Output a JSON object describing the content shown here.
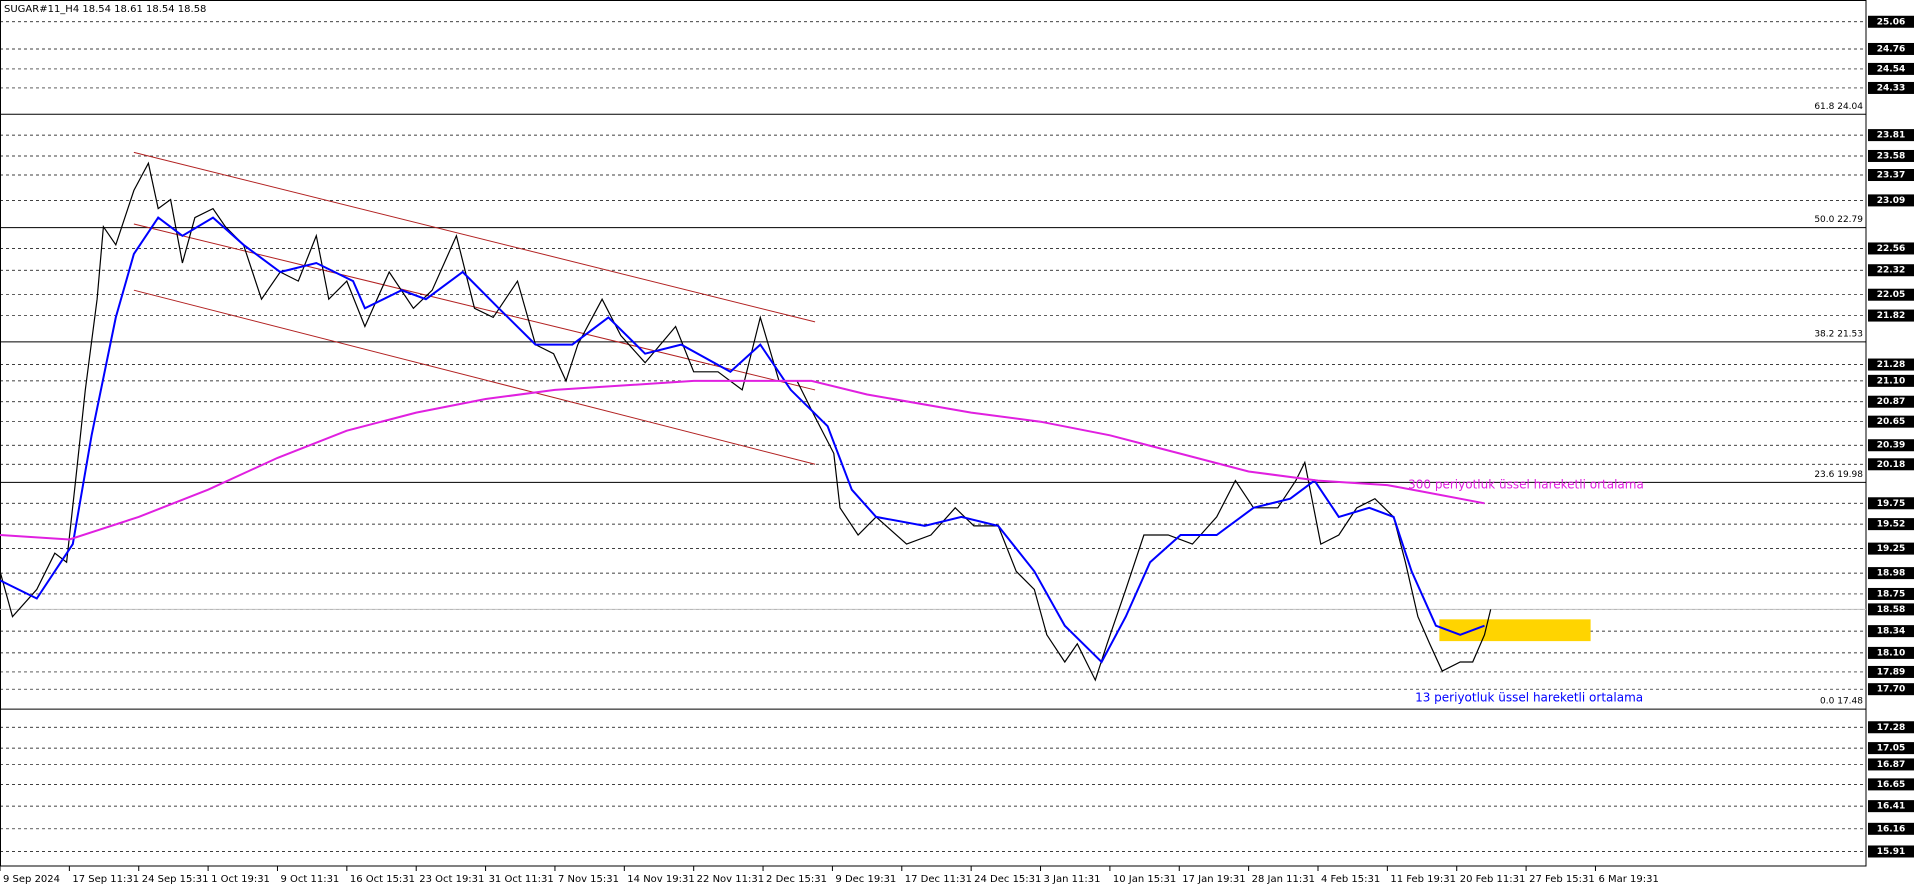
{
  "chart_data": {
    "type": "line",
    "title": "SUGAR#11_H4  18.54 18.61 18.54 18.58",
    "xlim": [
      0,
      26.9
    ],
    "ylim": [
      15.75,
      25.3
    ],
    "xticks": [
      {
        "value": 0,
        "label": "9 Sep 2024"
      },
      {
        "value": 1,
        "label": "17 Sep 11:31"
      },
      {
        "value": 2,
        "label": "24 Sep 15:31"
      },
      {
        "value": 3,
        "label": "1 Oct 19:31"
      },
      {
        "value": 4,
        "label": "9 Oct 11:31"
      },
      {
        "value": 5,
        "label": "16 Oct 15:31"
      },
      {
        "value": 6,
        "label": "23 Oct 19:31"
      },
      {
        "value": 7,
        "label": "31 Oct 11:31"
      },
      {
        "value": 8,
        "label": "7 Nov 15:31"
      },
      {
        "value": 9,
        "label": "14 Nov 19:31"
      },
      {
        "value": 10,
        "label": "22 Nov 11:31"
      },
      {
        "value": 11,
        "label": "2 Dec 15:31"
      },
      {
        "value": 12,
        "label": "9 Dec 19:31"
      },
      {
        "value": 13,
        "label": "17 Dec 11:31"
      },
      {
        "value": 14,
        "label": "24 Dec 15:31"
      },
      {
        "value": 15,
        "label": "3 Jan 11:31"
      },
      {
        "value": 16,
        "label": "10 Jan 15:31"
      },
      {
        "value": 17,
        "label": "17 Jan 19:31"
      },
      {
        "value": 18,
        "label": "28 Jan 11:31"
      },
      {
        "value": 19,
        "label": "4 Feb 15:31"
      },
      {
        "value": 20,
        "label": "11 Feb 19:31"
      },
      {
        "value": 21,
        "label": "20 Feb 11:31"
      },
      {
        "value": 22,
        "label": "27 Feb 15:31"
      },
      {
        "value": 23,
        "label": "6 Mar 19:31"
      }
    ],
    "yticks": [
      25.06,
      24.76,
      24.54,
      24.33,
      23.81,
      23.58,
      23.37,
      23.09,
      22.56,
      22.32,
      22.05,
      21.82,
      21.28,
      {
        "value": 21.1,
        "label": "21.10"
      },
      20.87,
      20.65,
      20.39,
      20.18,
      19.75,
      19.52,
      19.25,
      18.98,
      18.75,
      18.58,
      18.34,
      {
        "value": 18.1,
        "label": "18.10"
      },
      17.89,
      {
        "value": 17.7,
        "label": "17.70"
      },
      17.28,
      17.05,
      16.87,
      16.65,
      16.41,
      16.16,
      15.91
    ],
    "grid": true,
    "current_price": 18.58,
    "fib_levels": [
      {
        "value": 24.04,
        "label": "61.8 24.04"
      },
      {
        "value": 22.79,
        "label": "50.0 22.79"
      },
      {
        "value": 21.53,
        "label": "38.2 21.53"
      },
      {
        "value": 19.98,
        "label": "23.6 19.98"
      },
      {
        "value": 17.48,
        "label": "0.0 17.48"
      }
    ],
    "zone": {
      "color": "#ffd400",
      "x": [
        20.75,
        22.93
      ],
      "y": [
        18.23,
        18.47
      ]
    },
    "trend_lines": [
      {
        "color": "#b22222",
        "x": [
          1.93,
          11.75
        ],
        "values": [
          23.62,
          21.75
        ]
      },
      {
        "color": "#b22222",
        "x": [
          1.93,
          11.75
        ],
        "values": [
          22.83,
          21.0
        ]
      },
      {
        "color": "#b22222",
        "x": [
          1.93,
          11.75
        ],
        "values": [
          22.1,
          20.18
        ]
      }
    ],
    "series": [
      {
        "color": "#000000",
        "x": [
          0,
          0.18,
          0.53,
          0.79,
          0.96,
          1.09,
          1.23,
          1.4,
          1.49,
          1.67,
          1.93,
          2.14,
          2.28,
          2.46,
          2.63,
          2.81,
          3.07,
          3.25,
          3.51,
          3.77,
          4.04,
          4.3,
          4.56,
          4.74,
          5.0,
          5.26,
          5.61,
          5.96,
          6.23,
          6.58,
          6.84,
          7.11,
          7.46,
          7.72,
          7.98,
          8.16,
          8.33,
          8.68,
          8.95,
          9.3,
          9.74,
          10.0,
          10.35,
          10.7,
          10.96,
          11.23,
          11.49,
          11.75,
          12.02,
          12.11,
          12.37,
          12.63,
          13.07,
          13.42,
          13.77,
          14.04,
          14.39,
          14.65,
          14.91,
          15.09,
          15.35,
          15.53,
          15.79,
          15.96,
          16.23,
          16.49,
          16.84,
          17.19,
          17.54,
          17.81,
          18.07,
          18.42,
          18.68,
          18.81,
          19.04,
          19.3,
          19.56,
          19.82,
          20.09,
          20.26,
          20.44,
          20.61,
          20.79,
          21.05,
          21.23,
          21.4,
          21.49
        ],
        "values": [
          19.0,
          18.5,
          18.8,
          19.2,
          19.1,
          20.0,
          21.0,
          22.0,
          22.8,
          22.6,
          23.2,
          23.5,
          23.0,
          23.1,
          22.4,
          22.9,
          23.0,
          22.8,
          22.6,
          22.0,
          22.3,
          22.2,
          22.7,
          22.0,
          22.2,
          21.7,
          22.3,
          21.9,
          22.1,
          22.7,
          21.9,
          21.8,
          22.2,
          21.5,
          21.4,
          21.1,
          21.5,
          22.0,
          21.6,
          21.3,
          21.7,
          21.2,
          21.2,
          21.0,
          21.8,
          21.1,
          21.1,
          20.7,
          20.3,
          19.7,
          19.4,
          19.6,
          19.3,
          19.4,
          19.7,
          19.5,
          19.5,
          19.0,
          18.8,
          18.3,
          18.0,
          18.2,
          17.8,
          18.2,
          18.8,
          19.4,
          19.4,
          19.3,
          19.6,
          20.0,
          19.7,
          19.7,
          20.0,
          20.2,
          19.3,
          19.4,
          19.7,
          19.8,
          19.6,
          19.1,
          18.5,
          18.2,
          17.9,
          18.0,
          18.0,
          18.3,
          18.58
        ]
      },
      {
        "name": "13 periyotluk üssel hareketli ortalama",
        "color": "#0000ff",
        "x": [
          0,
          0.53,
          1.05,
          1.32,
          1.67,
          1.93,
          2.28,
          2.63,
          3.07,
          3.51,
          4.04,
          4.56,
          5.09,
          5.26,
          5.79,
          6.14,
          6.67,
          7.19,
          7.72,
          8.25,
          8.77,
          9.3,
          9.82,
          10.53,
          10.96,
          11.4,
          11.93,
          12.28,
          12.63,
          13.33,
          13.86,
          14.39,
          14.91,
          15.35,
          15.88,
          16.23,
          16.58,
          17.02,
          17.54,
          18.07,
          18.6,
          18.95,
          19.3,
          19.74,
          20.09,
          20.35,
          20.7,
          21.05,
          21.4
        ],
        "values": [
          18.9,
          18.7,
          19.3,
          20.5,
          21.8,
          22.5,
          22.9,
          22.7,
          22.9,
          22.6,
          22.3,
          22.4,
          22.2,
          21.9,
          22.1,
          22.0,
          22.3,
          21.9,
          21.5,
          21.5,
          21.8,
          21.4,
          21.5,
          21.2,
          21.5,
          21.0,
          20.6,
          19.9,
          19.6,
          19.5,
          19.6,
          19.5,
          19.0,
          18.4,
          18.0,
          18.5,
          19.1,
          19.4,
          19.4,
          19.7,
          19.8,
          20.0,
          19.6,
          19.7,
          19.6,
          19.0,
          18.4,
          18.3,
          18.4
        ]
      },
      {
        "name": "300 periyotluk üssel hareketli ortalama",
        "color": "#e020e0",
        "x": [
          0,
          1,
          2,
          3,
          4,
          5,
          6,
          7,
          8,
          9,
          10,
          11,
          11.7,
          12.5,
          14,
          15,
          16,
          17,
          18,
          19,
          20,
          20.5,
          21.4
        ],
        "values": [
          19.4,
          19.35,
          19.6,
          19.9,
          20.25,
          20.55,
          20.75,
          20.9,
          21.0,
          21.05,
          21.1,
          21.1,
          21.1,
          20.95,
          20.75,
          20.65,
          20.5,
          20.3,
          20.1,
          20.0,
          19.95,
          19.88,
          19.75
        ]
      }
    ]
  }
}
